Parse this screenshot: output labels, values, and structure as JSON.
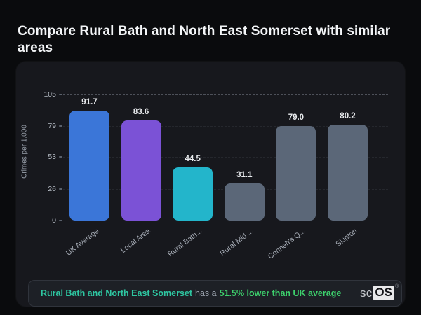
{
  "page": {
    "title": "Compare Rural Bath and North East Somerset with similar areas"
  },
  "chart_data": {
    "type": "bar",
    "categories": [
      "UK Average",
      "Local Area",
      "Rural Bath...",
      "Rural Mid ...",
      "Connah's Q...",
      "Skipton"
    ],
    "values": [
      91.7,
      83.6,
      44.5,
      31.1,
      79.0,
      80.2
    ],
    "value_labels": [
      "91.7",
      "83.6",
      "44.5",
      "31.1",
      "79.0",
      "80.2"
    ],
    "bar_colors": [
      "#3b76d8",
      "#7b52d6",
      "#23b5cb",
      "#5b6778",
      "#5b6778",
      "#5b6778"
    ],
    "ylabel": "Crimes per 1,000",
    "xlabel": "",
    "yticks": [
      0,
      26,
      53,
      79,
      105
    ],
    "ylim": [
      0,
      105
    ],
    "grid": "horizontal-dashed",
    "legend": "none"
  },
  "callout": {
    "area_name": "Rural Bath and North East Somerset",
    "connector": "has a",
    "highlight": "51.5% lower than UK average",
    "area_color": "#2ec7a2",
    "highlight_color": "#3dd16d"
  },
  "logo": {
    "prefix": "sc",
    "suffix": "OS",
    "registered": "®"
  },
  "colors": {
    "page_background": "#0a0b0d",
    "panel_background": "#17181d",
    "callout_background": "#1d2026",
    "accent_blue": "#3b76d8",
    "accent_purple": "#7b52d6",
    "accent_teal": "#23b5cb",
    "neutral_bar": "#5b6778"
  }
}
